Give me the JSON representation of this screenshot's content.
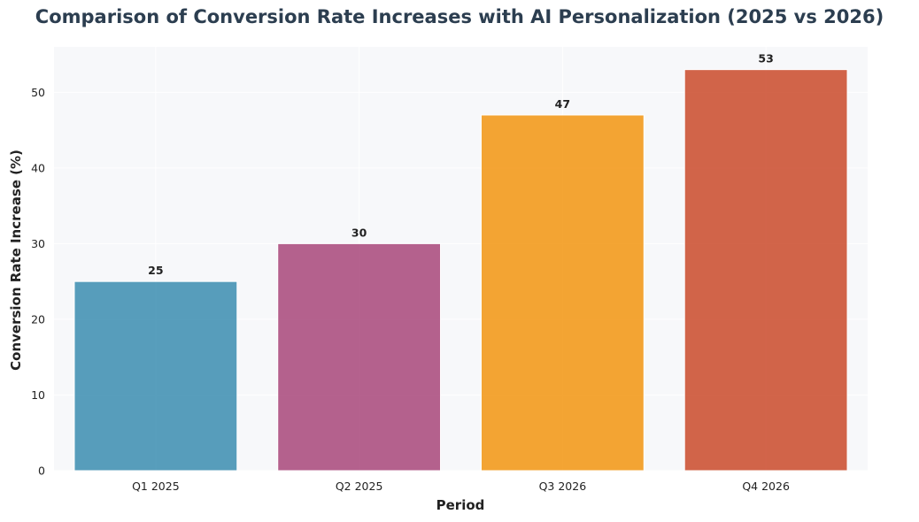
{
  "chart_data": {
    "type": "bar",
    "title": "Comparison of Conversion Rate Increases with AI Personalization (2025 vs 2026)",
    "xlabel": "Period",
    "ylabel": "Conversion Rate Increase (%)",
    "categories": [
      "Q1 2025",
      "Q2 2025",
      "Q3 2026",
      "Q4 2026"
    ],
    "values": [
      25,
      30,
      47,
      53
    ],
    "value_labels": [
      "25",
      "30",
      "47",
      "53"
    ],
    "colors": [
      "#2e86ab",
      "#a23b72",
      "#f18f01",
      "#c73e1d"
    ],
    "ylim": [
      0,
      56
    ],
    "yticks": [
      0,
      10,
      20,
      30,
      40,
      50
    ],
    "ytick_labels": [
      "0",
      "10",
      "20",
      "30",
      "40",
      "50"
    ],
    "grid": true,
    "plot_background": "#f7f8fa"
  }
}
